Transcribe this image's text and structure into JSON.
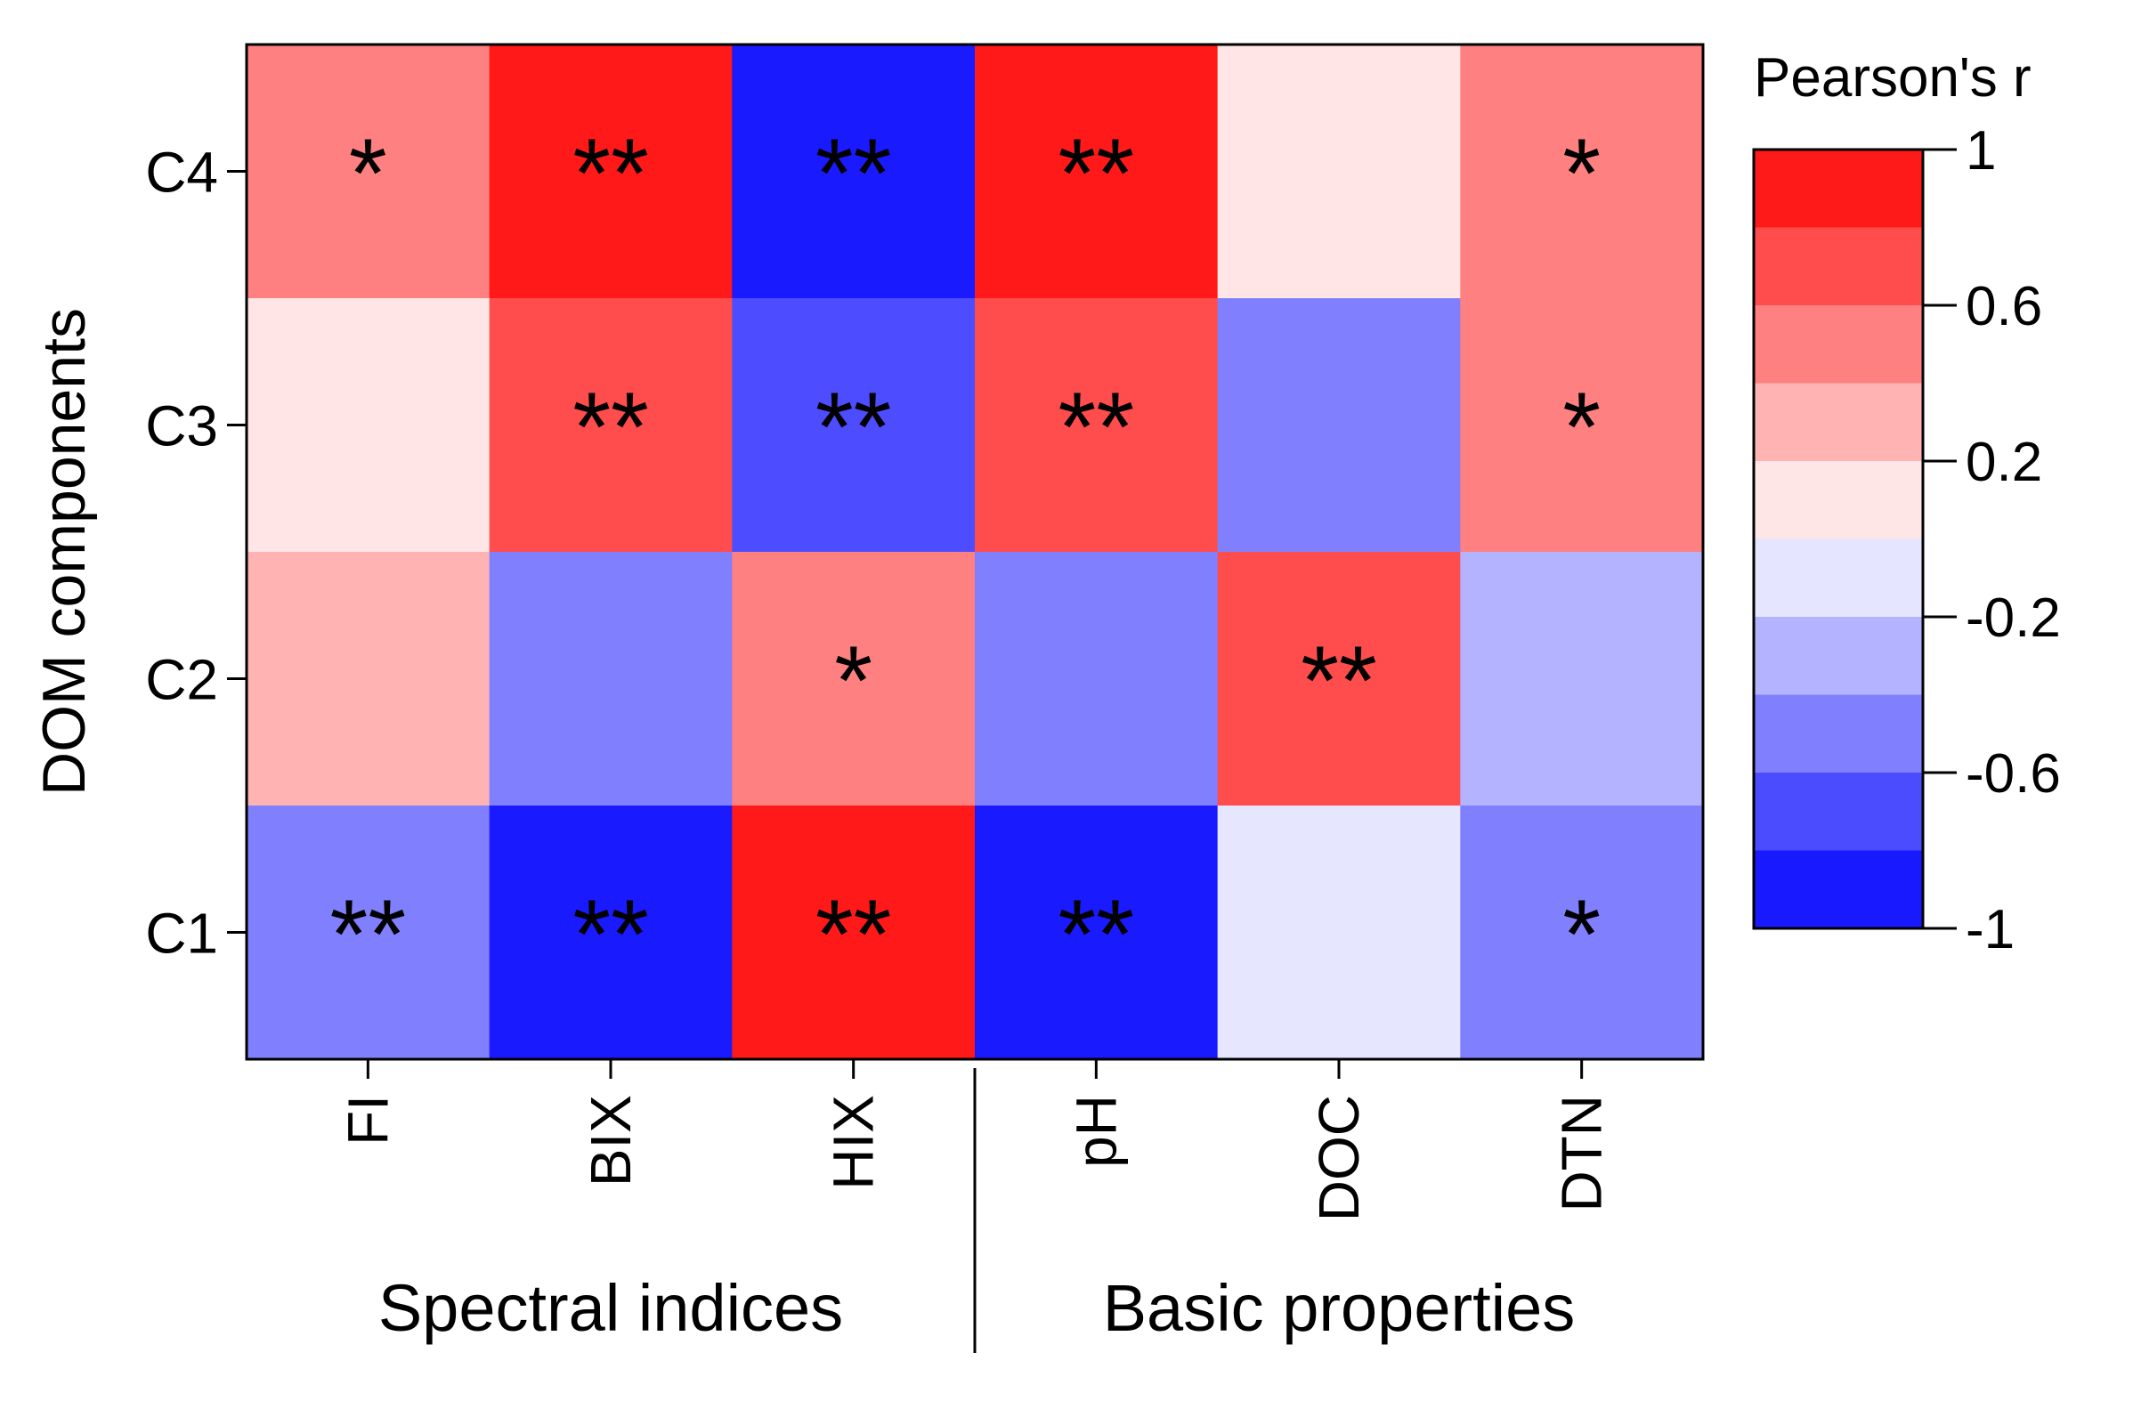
{
  "chart_data": {
    "type": "heatmap",
    "ylabel": "DOM components",
    "rows": [
      "C4",
      "C3",
      "C2",
      "C1"
    ],
    "columns": [
      "FI",
      "BIX",
      "HIX",
      "pH",
      "DOC",
      "DTN"
    ],
    "column_groups": [
      {
        "label": "Spectral indices",
        "columns": [
          "FI",
          "BIX",
          "HIX"
        ]
      },
      {
        "label": "Basic properties",
        "columns": [
          "pH",
          "DOC",
          "DTN"
        ]
      }
    ],
    "values": [
      [
        0.5,
        1.0,
        -1.0,
        1.0,
        0.1,
        0.5
      ],
      [
        0.1,
        0.7,
        -0.7,
        0.7,
        -0.5,
        0.5
      ],
      [
        0.3,
        -0.5,
        0.5,
        -0.5,
        0.7,
        -0.3
      ],
      [
        -0.5,
        -1.0,
        1.0,
        -1.0,
        -0.1,
        -0.5
      ]
    ],
    "significance": [
      [
        "*",
        "**",
        "**",
        "**",
        "",
        "*"
      ],
      [
        "",
        "**",
        "**",
        "**",
        "",
        "*"
      ],
      [
        "",
        "",
        "*",
        "",
        "**",
        ""
      ],
      [
        "**",
        "**",
        "**",
        "**",
        "",
        "*"
      ]
    ],
    "colorbar": {
      "title": "Pearson's r",
      "range": [
        -1,
        1
      ],
      "tick_values": [
        1,
        0.6,
        0.2,
        -0.2,
        -0.6,
        -1
      ],
      "tick_labels": [
        "1",
        "0.6",
        "0.2",
        "-0.2",
        "-0.6",
        "-1"
      ],
      "low_color": "#0000ff",
      "mid_color": "#ffffff",
      "high_color": "#ff0000",
      "bins": 10
    }
  }
}
